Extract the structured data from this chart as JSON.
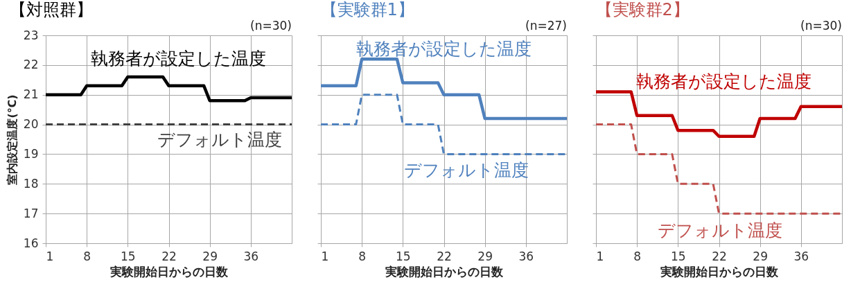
{
  "chart_data": [
    {
      "type": "line",
      "title": "【対照群】",
      "annotations": [
        "(n=30)"
      ],
      "xlabel": "実験開始日からの日数",
      "ylabel": "室内設定温度(℃)",
      "xlim": [
        1,
        43
      ],
      "xticks": [
        1,
        8,
        15,
        22,
        29,
        36
      ],
      "ylim": [
        16,
        23
      ],
      "yticks": [
        16,
        17,
        18,
        19,
        20,
        21,
        22,
        23
      ],
      "grid": true,
      "legend": false,
      "marker": "none",
      "series": [
        {
          "name": "執務者が設定した温度",
          "color": "#000000",
          "line_style": "solid",
          "x": [
            1,
            7,
            8,
            14,
            15,
            21,
            22,
            28,
            29,
            35,
            36,
            43
          ],
          "values": [
            21,
            21,
            21.3,
            21.3,
            21.6,
            21.6,
            21.3,
            21.3,
            20.8,
            20.8,
            20.9,
            20.9
          ]
        },
        {
          "name": "デフォルト温度",
          "color": "#404040",
          "line_style": "dashed",
          "x": [
            1,
            43
          ],
          "values": [
            20,
            20
          ]
        }
      ]
    },
    {
      "type": "line",
      "title": "【実験群1】",
      "annotations": [
        "(n=27)"
      ],
      "xlabel": "実験開始日からの日数",
      "xlim": [
        1,
        43
      ],
      "xticks": [
        1,
        8,
        15,
        22,
        29,
        36
      ],
      "ylim": [
        16,
        23
      ],
      "yticks": [
        16,
        17,
        18,
        19,
        20,
        21,
        22,
        23
      ],
      "tick_labels": "x",
      "grid": true,
      "legend": false,
      "marker": "none",
      "series": [
        {
          "name": "執務者が設定した温度",
          "color": "#4f81bd",
          "line_style": "solid",
          "x": [
            1,
            7,
            8,
            14,
            15,
            21,
            22,
            28,
            29,
            35,
            36,
            43
          ],
          "values": [
            21.3,
            21.3,
            22.2,
            22.2,
            21.4,
            21.4,
            21,
            21,
            20.2,
            20.2,
            20.2,
            20.2
          ]
        },
        {
          "name": "デフォルト温度",
          "color": "#4f81bd",
          "line_style": "dashed",
          "x": [
            1,
            7,
            8,
            14,
            15,
            21,
            22,
            28,
            29,
            35,
            36,
            43
          ],
          "values": [
            20,
            20,
            21,
            21,
            20,
            20,
            19,
            19,
            19,
            19,
            19,
            19
          ]
        }
      ]
    },
    {
      "type": "line",
      "title": "【実験群2】",
      "annotations": [
        "(n=30)"
      ],
      "xlabel": "実験開始日からの日数",
      "xlim": [
        1,
        43
      ],
      "xticks": [
        1,
        8,
        15,
        22,
        29,
        36
      ],
      "ylim": [
        16,
        23
      ],
      "yticks": [
        16,
        17,
        18,
        19,
        20,
        21,
        22,
        23
      ],
      "tick_labels": "x",
      "grid": true,
      "legend": false,
      "marker": "none",
      "series": [
        {
          "name": "執務者が設定した温度",
          "color": "#c00000",
          "line_style": "solid",
          "x": [
            1,
            7,
            8,
            14,
            15,
            21,
            22,
            28,
            29,
            35,
            36,
            43
          ],
          "values": [
            21.1,
            21.1,
            20.3,
            20.3,
            19.8,
            19.8,
            19.6,
            19.6,
            20.2,
            20.2,
            20.6,
            20.6
          ]
        },
        {
          "name": "デフォルト温度",
          "color": "#c0504d",
          "line_style": "dashed",
          "x": [
            1,
            7,
            8,
            14,
            15,
            21,
            22,
            28,
            29,
            35,
            36,
            43
          ],
          "values": [
            20,
            20,
            19,
            19,
            18,
            18,
            17,
            17,
            17,
            17,
            17,
            17
          ]
        }
      ]
    }
  ]
}
